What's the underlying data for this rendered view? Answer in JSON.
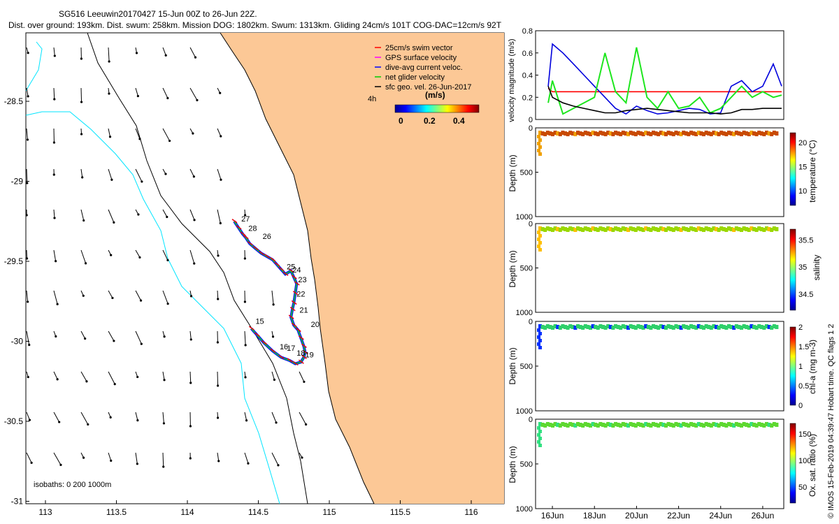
{
  "header": {
    "line1": "SG516 Leeuwin20170427 15-Jun 00Z to 26-Jun 22Z.",
    "line2": "Dist. over ground: 193km. Dist. swum: 258km. Mission DOG: 1802km. Swum: 1313km. Gliding 24cm/s 101T COG-DAC=12cm/s 92T"
  },
  "footer_note": "© IMOS 15-Feb-2019 04:39:47 Hobart time. QC flags 1 2",
  "colors": {
    "land": "#fcc896",
    "isobath_200": "#00e5ff",
    "track_red": "#e8000b",
    "track_blue": "#0010ff",
    "track_green": "#19d619",
    "velocity_red": "#ff0000",
    "velocity_blue": "#0000dd",
    "velocity_green": "#1ee61e",
    "velocity_black": "#000000"
  },
  "map": {
    "legend": {
      "items": [
        {
          "label": "25cm/s swim vector",
          "color": "#ff0000"
        },
        {
          "label": "GPS surface velocity",
          "color": "#ff00ff"
        },
        {
          "label": "dive-avg current veloc.",
          "color": "#0000ff"
        },
        {
          "label": "net glider velocity",
          "color": "#00cc00"
        },
        {
          "label": "sfc geo. vel. 26-Jun-2017",
          "color": "#000000"
        }
      ],
      "unit": "(m/s)",
      "time_label": "4h",
      "colorbar_ticks": [
        "0",
        "0.2",
        "0.4"
      ]
    },
    "isobath_note": "isobaths: 0   200  1000m",
    "day_labels": [
      "27",
      "28",
      "26",
      "25",
      "24",
      "23",
      "22",
      "21",
      "20",
      "15",
      "16",
      "17",
      "18",
      "19"
    ]
  },
  "chart_data": [
    {
      "type": "scatter",
      "panel": "map",
      "xticks": [
        "113",
        "113.5",
        "114",
        "114.5",
        "115",
        "115.5",
        "116"
      ],
      "yticks": [
        "-28.5",
        "-29",
        "-29.5",
        "-30",
        "-30.5",
        "-31"
      ],
      "xlim": [
        112.85,
        116.25
      ],
      "ylim": [
        -31.02,
        -28.18
      ],
      "track": {
        "lon": [
          114.33,
          114.36,
          114.39,
          114.41,
          114.44,
          114.48,
          114.52,
          114.56,
          114.6,
          114.63,
          114.66,
          114.69,
          114.73,
          114.75,
          114.77,
          114.76,
          114.75,
          114.74,
          114.73,
          114.75,
          114.78,
          114.8,
          114.82,
          114.83,
          114.82,
          114.8,
          114.76,
          114.72,
          114.66,
          114.6,
          114.54,
          114.49,
          114.45
        ],
        "lat": [
          -29.25,
          -29.29,
          -29.33,
          -29.35,
          -29.39,
          -29.42,
          -29.45,
          -29.47,
          -29.49,
          -29.52,
          -29.55,
          -29.58,
          -29.56,
          -29.6,
          -29.64,
          -29.7,
          -29.76,
          -29.8,
          -29.85,
          -29.9,
          -29.93,
          -29.98,
          -30.03,
          -30.07,
          -30.1,
          -30.13,
          -30.14,
          -30.12,
          -30.1,
          -30.06,
          -30.01,
          -29.96,
          -29.92
        ]
      },
      "day_points": [
        {
          "label": "27",
          "lon": 114.38,
          "lat": -29.25
        },
        {
          "label": "28",
          "lon": 114.43,
          "lat": -29.31
        },
        {
          "label": "26",
          "lon": 114.53,
          "lat": -29.36
        },
        {
          "label": "25",
          "lon": 114.7,
          "lat": -29.55
        },
        {
          "label": "24",
          "lon": 114.74,
          "lat": -29.57
        },
        {
          "label": "23",
          "lon": 114.78,
          "lat": -29.63
        },
        {
          "label": "22",
          "lon": 114.77,
          "lat": -29.72
        },
        {
          "label": "21",
          "lon": 114.79,
          "lat": -29.82
        },
        {
          "label": "20",
          "lon": 114.87,
          "lat": -29.91
        },
        {
          "label": "15",
          "lon": 114.48,
          "lat": -29.89
        },
        {
          "label": "16",
          "lon": 114.65,
          "lat": -30.05
        },
        {
          "label": "17",
          "lon": 114.7,
          "lat": -30.06
        },
        {
          "label": "18",
          "lon": 114.77,
          "lat": -30.09
        },
        {
          "label": "19",
          "lon": 114.83,
          "lat": -30.1
        }
      ]
    },
    {
      "type": "line",
      "panel": "velocity",
      "ylabel": "velocity magnitude (m/s)",
      "ylim": [
        0,
        0.8
      ],
      "yticks": [
        "0",
        "0.2",
        "0.4",
        "0.6",
        "0.8"
      ],
      "x_days": [
        15.8,
        16,
        16.5,
        17,
        17.5,
        18,
        18.5,
        19,
        19.5,
        20,
        20.5,
        21,
        21.5,
        22,
        22.5,
        23,
        23.5,
        24,
        24.5,
        25,
        25.5,
        26,
        26.5,
        26.9
      ],
      "series": [
        {
          "color": "#ff0000",
          "values": [
            0.28,
            0.25,
            0.25,
            0.25,
            0.25,
            0.25,
            0.25,
            0.25,
            0.25,
            0.25,
            0.25,
            0.25,
            0.25,
            0.25,
            0.25,
            0.25,
            0.25,
            0.25,
            0.25,
            0.25,
            0.25,
            0.25,
            0.25,
            0.25
          ]
        },
        {
          "color": "#0000dd",
          "values": [
            0.3,
            0.68,
            0.6,
            0.5,
            0.4,
            0.3,
            0.2,
            0.1,
            0.05,
            0.12,
            0.08,
            0.05,
            0.06,
            0.08,
            0.1,
            0.09,
            0.05,
            0.06,
            0.3,
            0.35,
            0.25,
            0.3,
            0.5,
            0.3
          ]
        },
        {
          "color": "#1ee61e",
          "values": [
            0.15,
            0.35,
            0.05,
            0.1,
            0.15,
            0.2,
            0.6,
            0.25,
            0.15,
            0.65,
            0.2,
            0.1,
            0.25,
            0.1,
            0.12,
            0.2,
            0.06,
            0.1,
            0.2,
            0.3,
            0.2,
            0.25,
            0.2,
            0.22
          ]
        },
        {
          "color": "#000000",
          "values": [
            0.3,
            0.2,
            0.15,
            0.12,
            0.1,
            0.08,
            0.06,
            0.06,
            0.08,
            0.09,
            0.1,
            0.09,
            0.08,
            0.07,
            0.06,
            0.06,
            0.06,
            0.05,
            0.06,
            0.09,
            0.09,
            0.1,
            0.1,
            0.1
          ]
        }
      ]
    },
    {
      "type": "scatter",
      "panel": "temperature",
      "ylabel": "Depth (m)",
      "cbar_label": "temperature (°C)",
      "cbar_ticks": [
        "10",
        "15",
        "20"
      ],
      "ylim": [
        1000,
        0
      ],
      "yticks": [
        "0",
        "500",
        "1000"
      ]
    },
    {
      "type": "scatter",
      "panel": "salinity",
      "ylabel": "Depth (m)",
      "cbar_label": "salinity",
      "cbar_ticks": [
        "34.5",
        "35",
        "35.5"
      ],
      "ylim": [
        1000,
        0
      ],
      "yticks": [
        "0",
        "500",
        "1000"
      ]
    },
    {
      "type": "scatter",
      "panel": "chl-a",
      "ylabel": "Depth (m)",
      "cbar_label": "chl-a (mg m-3)",
      "cbar_ticks": [
        "0",
        "0.5",
        "1",
        "1.5",
        "2"
      ],
      "ylim": [
        1000,
        0
      ],
      "yticks": [
        "0",
        "500",
        "1000"
      ]
    },
    {
      "type": "scatter",
      "panel": "oxygen",
      "ylabel": "Depth (m)",
      "cbar_label": "Ox. sat. ratio (%)",
      "cbar_ticks": [
        "50",
        "100",
        "150"
      ],
      "ylim": [
        1000,
        0
      ],
      "yticks": [
        "0",
        "500",
        "1000"
      ],
      "xticks": [
        "16Jun",
        "18Jun",
        "20Jun",
        "22Jun",
        "24Jun",
        "26Jun"
      ],
      "xlim_days": [
        15.2,
        27.0
      ]
    }
  ]
}
